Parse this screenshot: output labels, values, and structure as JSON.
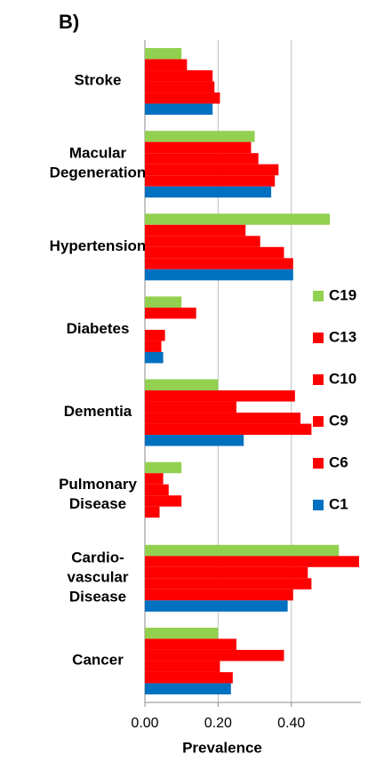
{
  "chart_data": {
    "type": "barh",
    "title": "B)",
    "xlabel": "Prevalence",
    "categories": [
      "Stroke",
      "Macular\nDegeneration",
      "Hypertension",
      "Diabetes",
      "Dementia",
      "Pulmonary\nDisease",
      "Cardio-\nvascular\nDisease",
      "Cancer"
    ],
    "series": [
      {
        "name": "C19",
        "color": "#92d050",
        "values": [
          0.1,
          0.3,
          0.505,
          0.1,
          0.2,
          0.1,
          0.53,
          0.2
        ]
      },
      {
        "name": "C13",
        "color": "#ff0000",
        "values": [
          0.115,
          0.29,
          0.275,
          0.14,
          0.41,
          0.05,
          0.585,
          0.25
        ]
      },
      {
        "name": "C10",
        "color": "#ff0000",
        "values": [
          0.185,
          0.31,
          0.315,
          0,
          0.25,
          0.065,
          0.445,
          0.38
        ]
      },
      {
        "name": "C9",
        "color": "#ff0000",
        "values": [
          0.19,
          0.365,
          0.38,
          0.055,
          0.425,
          0.1,
          0.455,
          0.205
        ]
      },
      {
        "name": "C6",
        "color": "#ff0000",
        "values": [
          0.205,
          0.355,
          0.405,
          0.045,
          0.455,
          0.04,
          0.405,
          0.24
        ]
      },
      {
        "name": "C1",
        "color": "#0070c0",
        "values": [
          0.185,
          0.345,
          0.405,
          0.05,
          0.27,
          0,
          0.39,
          0.235
        ]
      }
    ],
    "xlim": [
      0,
      0.59
    ],
    "xticks": [
      {
        "value": 0,
        "label": "0.00"
      },
      {
        "value": 0.2,
        "label": "0.20"
      },
      {
        "value": 0.4,
        "label": "0.40"
      }
    ],
    "grid": true,
    "legend": "right"
  }
}
